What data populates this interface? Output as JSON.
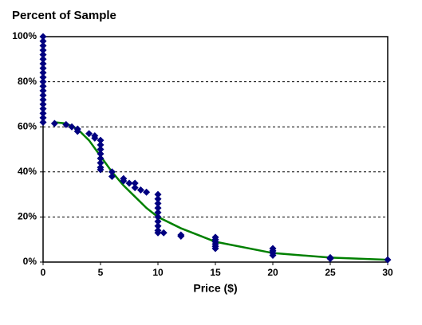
{
  "chart_data": {
    "type": "scatter",
    "title": "Percent of Sample",
    "x_label": "Price ($)",
    "xlim": [
      0,
      30
    ],
    "xticks": [
      0,
      5,
      10,
      15,
      20,
      25,
      30
    ],
    "ylim": [
      0,
      100
    ],
    "yticks": [
      {
        "value": 0,
        "label": "0%"
      },
      {
        "value": 20,
        "label": "20%"
      },
      {
        "value": 40,
        "label": "40%"
      },
      {
        "value": 60,
        "label": "60%"
      },
      {
        "value": 80,
        "label": "80%"
      },
      {
        "value": 100,
        "label": "100%"
      }
    ],
    "grid": true,
    "series": [
      {
        "type": "scatter",
        "color": "#000080",
        "x": [
          0,
          0,
          0,
          0,
          0,
          0,
          0,
          0,
          0,
          0,
          0,
          0,
          0,
          0,
          0,
          0,
          0,
          0,
          0,
          0,
          1,
          2,
          2.5,
          3,
          3,
          4,
          4.5,
          4.5,
          5,
          5,
          5,
          5,
          5,
          5,
          5,
          5,
          6,
          6,
          7,
          7,
          7.5,
          8,
          8,
          8.5,
          9,
          10,
          10,
          10,
          10,
          10,
          10,
          10,
          10,
          10,
          10,
          10.5,
          12,
          12,
          15,
          15,
          15,
          15,
          15,
          15,
          20,
          20,
          20,
          20,
          25,
          25,
          30
        ],
        "values": [
          62,
          64,
          66,
          68,
          70,
          72,
          74,
          76,
          78,
          80,
          82,
          84,
          86,
          88,
          90,
          92,
          94,
          96,
          98,
          100,
          61.5,
          61,
          60,
          59,
          58,
          57,
          56,
          55,
          54,
          52,
          50,
          48,
          46,
          44,
          42,
          41,
          40,
          38,
          37,
          36,
          35,
          35,
          33,
          32,
          31,
          30,
          28,
          26,
          24,
          22,
          20,
          18,
          16,
          14,
          13,
          13,
          12,
          11.5,
          11,
          10,
          9,
          8,
          7,
          6,
          6,
          5,
          4,
          3,
          2,
          1.5,
          1
        ]
      },
      {
        "type": "line",
        "color": "#008000",
        "x": [
          1,
          2,
          3,
          4,
          5,
          6,
          7,
          8,
          9,
          10,
          12,
          15,
          20,
          25,
          30
        ],
        "values": [
          62,
          61.5,
          59,
          54,
          47,
          40,
          34,
          29,
          24,
          20,
          15,
          9,
          4,
          2,
          1
        ]
      }
    ]
  }
}
